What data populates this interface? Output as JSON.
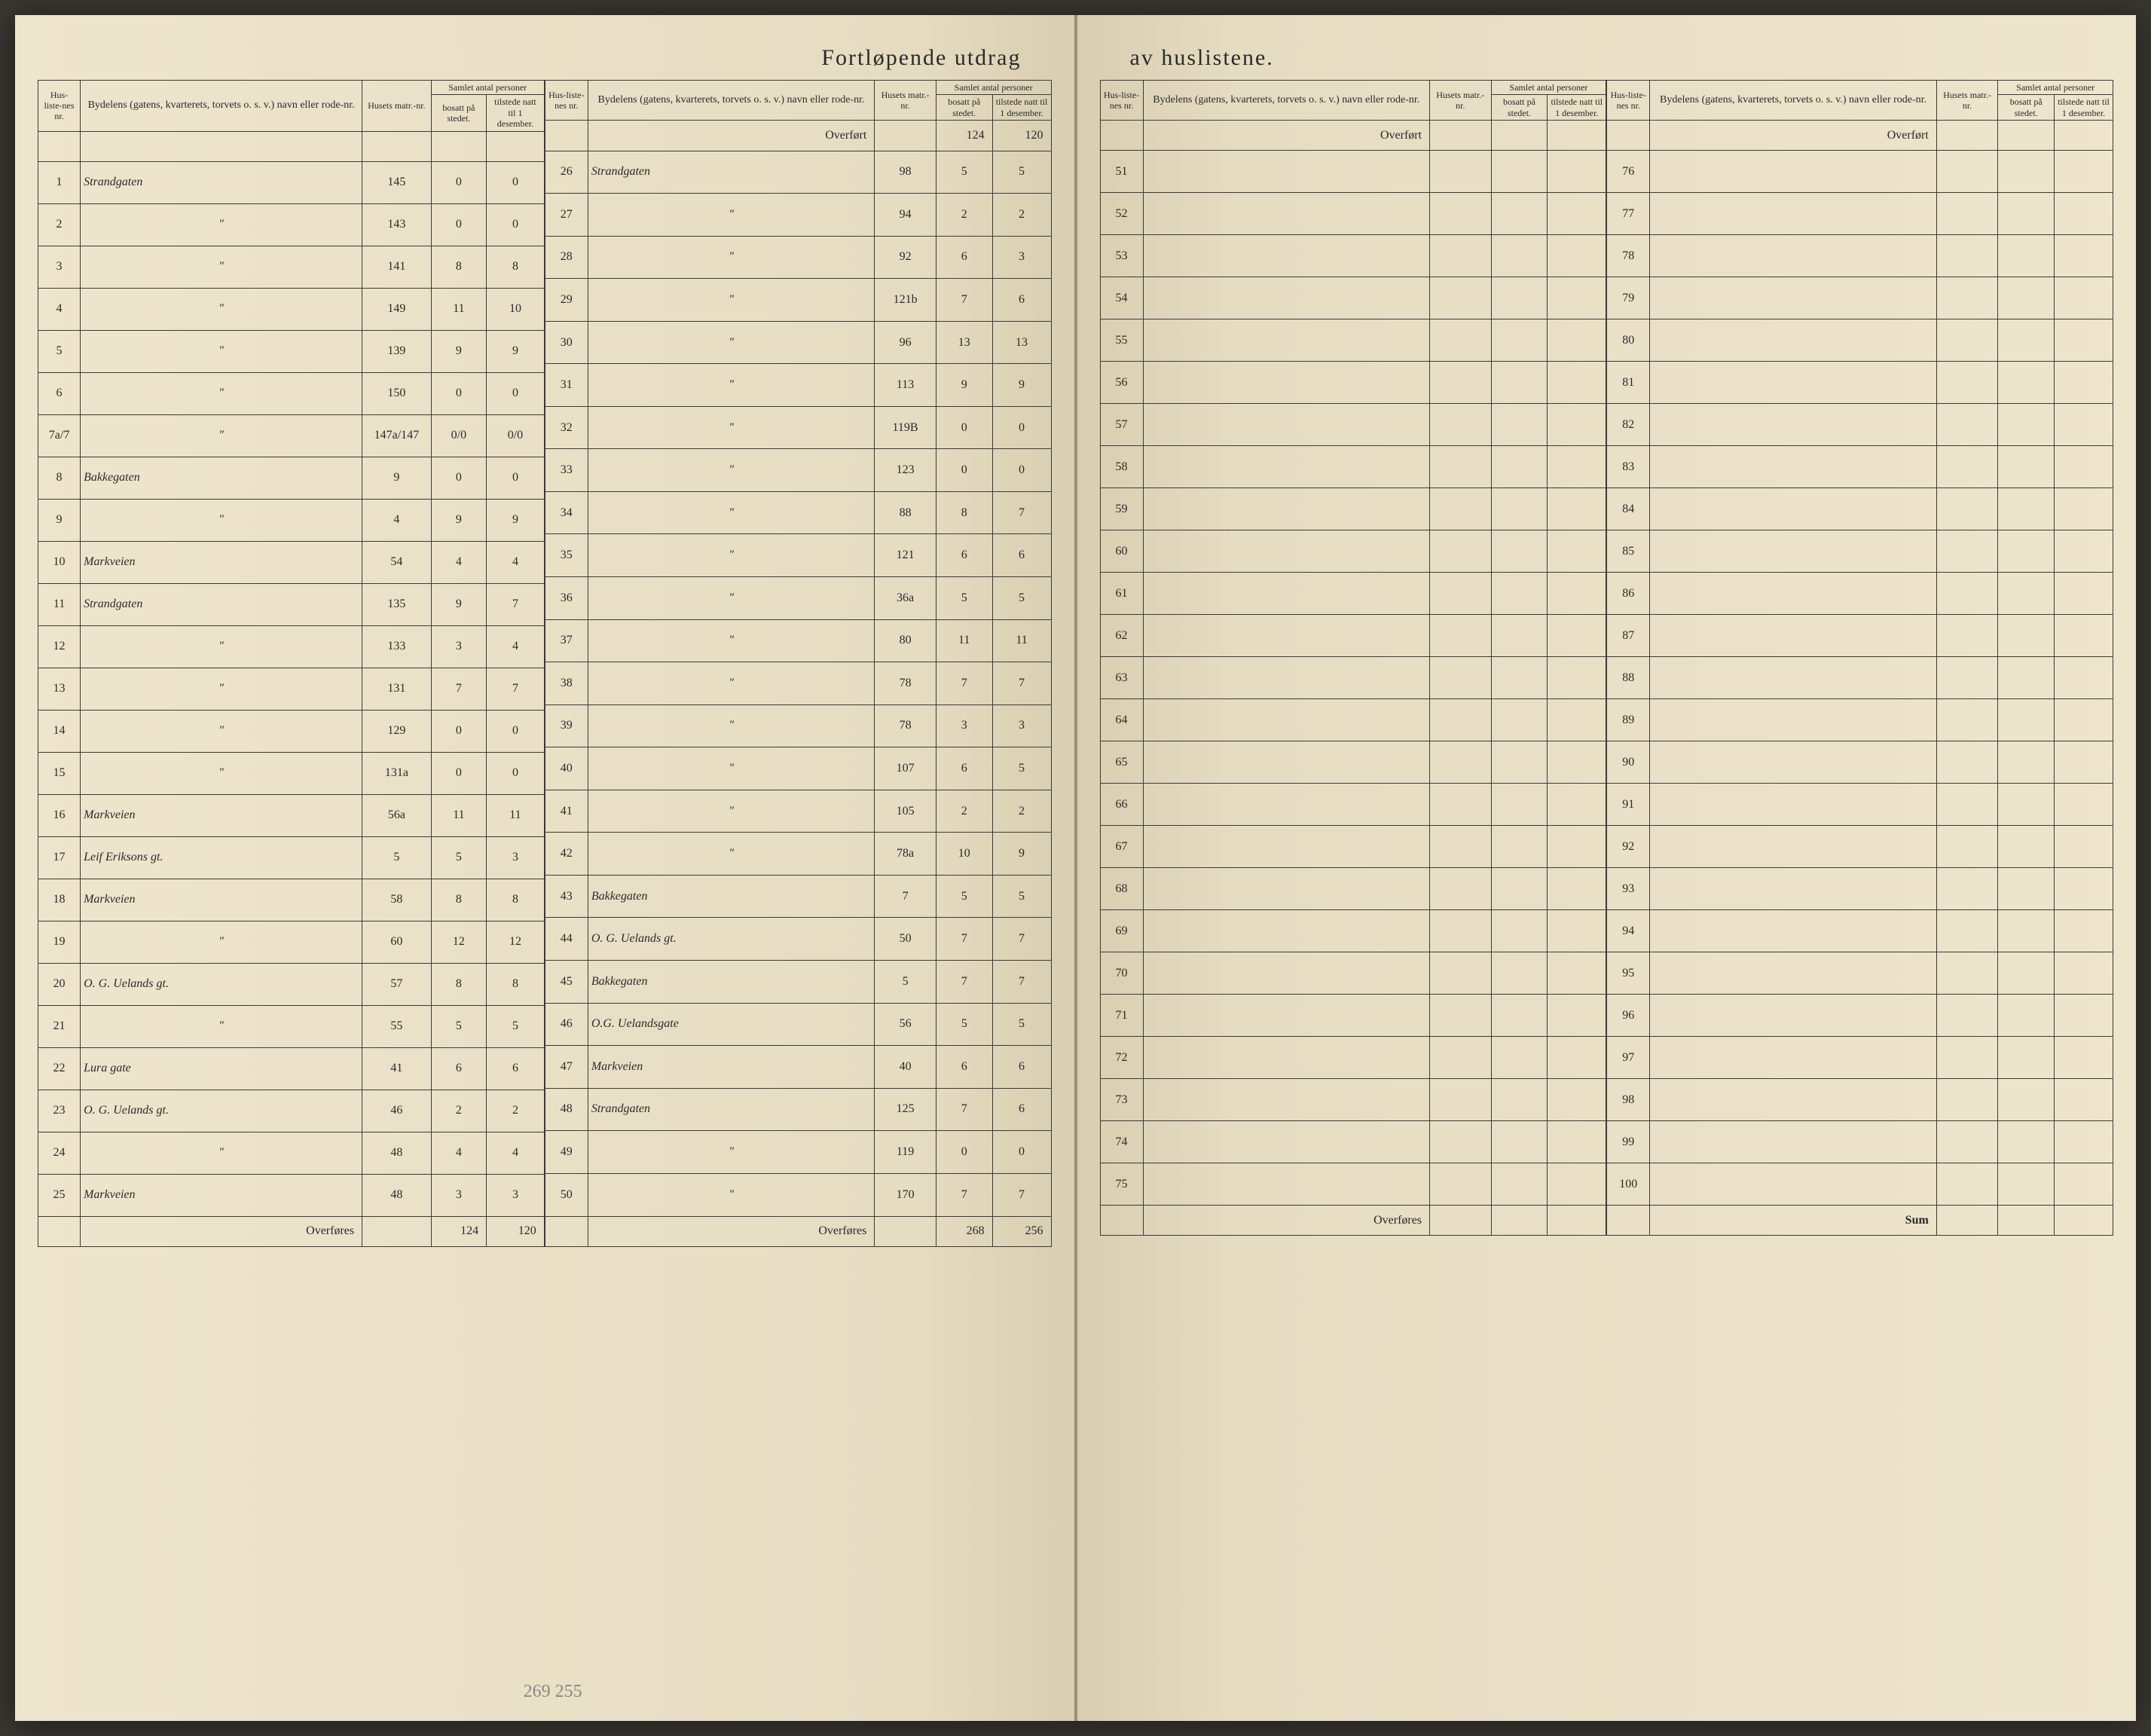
{
  "title_left": "Fortløpende utdrag",
  "title_right": "av huslistene.",
  "headers": {
    "nr": "Hus-liste-nes nr.",
    "name": "Bydelens (gatens, kvarterets, torvets o. s. v.) navn eller rode-nr.",
    "matr": "Husets matr.-nr.",
    "samlet": "Samlet antal personer",
    "bosatt": "bosatt på stedet.",
    "tilstede": "tilstede natt til 1 desember."
  },
  "labels": {
    "overfort": "Overført",
    "overfores": "Overføres",
    "sum": "Sum"
  },
  "col1": {
    "rows": [
      {
        "nr": "1",
        "name": "Strandgaten",
        "matr": "145",
        "bosatt": "0",
        "tilstede": "0"
      },
      {
        "nr": "2",
        "name": "\"",
        "matr": "143",
        "bosatt": "0",
        "tilstede": "0"
      },
      {
        "nr": "3",
        "name": "\"",
        "matr": "141",
        "bosatt": "8",
        "tilstede": "8"
      },
      {
        "nr": "4",
        "name": "\"",
        "matr": "149",
        "bosatt": "11",
        "tilstede": "10"
      },
      {
        "nr": "5",
        "name": "\"",
        "matr": "139",
        "bosatt": "9",
        "tilstede": "9"
      },
      {
        "nr": "6",
        "name": "\"",
        "matr": "150",
        "bosatt": "0",
        "tilstede": "0"
      },
      {
        "nr": "7a/7",
        "name": "\"",
        "matr": "147a/147",
        "bosatt": "0/0",
        "tilstede": "0/0"
      },
      {
        "nr": "8",
        "name": "Bakkegaten",
        "matr": "9",
        "bosatt": "0",
        "tilstede": "0"
      },
      {
        "nr": "9",
        "name": "\"",
        "matr": "4",
        "bosatt": "9",
        "tilstede": "9"
      },
      {
        "nr": "10",
        "name": "Markveien",
        "matr": "54",
        "bosatt": "4",
        "tilstede": "4"
      },
      {
        "nr": "11",
        "name": "Strandgaten",
        "matr": "135",
        "bosatt": "9",
        "tilstede": "7"
      },
      {
        "nr": "12",
        "name": "\"",
        "matr": "133",
        "bosatt": "3",
        "tilstede": "4"
      },
      {
        "nr": "13",
        "name": "\"",
        "matr": "131",
        "bosatt": "7",
        "tilstede": "7"
      },
      {
        "nr": "14",
        "name": "\"",
        "matr": "129",
        "bosatt": "0",
        "tilstede": "0"
      },
      {
        "nr": "15",
        "name": "\"",
        "matr": "131a",
        "bosatt": "0",
        "tilstede": "0"
      },
      {
        "nr": "16",
        "name": "Markveien",
        "matr": "56a",
        "bosatt": "11",
        "tilstede": "11"
      },
      {
        "nr": "17",
        "name": "Leif Eriksons gt.",
        "matr": "5",
        "bosatt": "5",
        "tilstede": "3"
      },
      {
        "nr": "18",
        "name": "Markveien",
        "matr": "58",
        "bosatt": "8",
        "tilstede": "8"
      },
      {
        "nr": "19",
        "name": "\"",
        "matr": "60",
        "bosatt": "12",
        "tilstede": "12"
      },
      {
        "nr": "20",
        "name": "O. G. Uelands gt.",
        "matr": "57",
        "bosatt": "8",
        "tilstede": "8"
      },
      {
        "nr": "21",
        "name": "\"",
        "matr": "55",
        "bosatt": "5",
        "tilstede": "5"
      },
      {
        "nr": "22",
        "name": "Lura gate",
        "matr": "41",
        "bosatt": "6",
        "tilstede": "6"
      },
      {
        "nr": "23",
        "name": "O. G. Uelands gt.",
        "matr": "46",
        "bosatt": "2",
        "tilstede": "2"
      },
      {
        "nr": "24",
        "name": "\"",
        "matr": "48",
        "bosatt": "4",
        "tilstede": "4"
      },
      {
        "nr": "25",
        "name": "Markveien",
        "matr": "48",
        "bosatt": "3",
        "tilstede": "3"
      }
    ],
    "overfores": {
      "bosatt": "124",
      "tilstede": "120"
    }
  },
  "col2": {
    "overfort": {
      "bosatt": "124",
      "tilstede": "120"
    },
    "rows": [
      {
        "nr": "26",
        "name": "Strandgaten",
        "matr": "98",
        "bosatt": "5",
        "tilstede": "5"
      },
      {
        "nr": "27",
        "name": "\"",
        "matr": "94",
        "bosatt": "2",
        "tilstede": "2"
      },
      {
        "nr": "28",
        "name": "\"",
        "matr": "92",
        "bosatt": "6",
        "tilstede": "3"
      },
      {
        "nr": "29",
        "name": "\"",
        "matr": "121b",
        "bosatt": "7",
        "tilstede": "6"
      },
      {
        "nr": "30",
        "name": "\"",
        "matr": "96",
        "bosatt": "13",
        "tilstede": "13"
      },
      {
        "nr": "31",
        "name": "\"",
        "matr": "113",
        "bosatt": "9",
        "tilstede": "9"
      },
      {
        "nr": "32",
        "name": "\"",
        "matr": "119B",
        "bosatt": "0",
        "tilstede": "0"
      },
      {
        "nr": "33",
        "name": "\"",
        "matr": "123",
        "bosatt": "0",
        "tilstede": "0"
      },
      {
        "nr": "34",
        "name": "\"",
        "matr": "88",
        "bosatt": "8",
        "tilstede": "7"
      },
      {
        "nr": "35",
        "name": "\"",
        "matr": "121",
        "bosatt": "6",
        "tilstede": "6"
      },
      {
        "nr": "36",
        "name": "\"",
        "matr": "36a",
        "bosatt": "5",
        "tilstede": "5"
      },
      {
        "nr": "37",
        "name": "\"",
        "matr": "80",
        "bosatt": "11",
        "tilstede": "11"
      },
      {
        "nr": "38",
        "name": "\"",
        "matr": "78",
        "bosatt": "7",
        "tilstede": "7"
      },
      {
        "nr": "39",
        "name": "\"",
        "matr": "78",
        "bosatt": "3",
        "tilstede": "3"
      },
      {
        "nr": "40",
        "name": "\"",
        "matr": "107",
        "bosatt": "6",
        "tilstede": "5"
      },
      {
        "nr": "41",
        "name": "\"",
        "matr": "105",
        "bosatt": "2",
        "tilstede": "2"
      },
      {
        "nr": "42",
        "name": "\"",
        "matr": "78a",
        "bosatt": "10",
        "tilstede": "9"
      },
      {
        "nr": "43",
        "name": "Bakkegaten",
        "matr": "7",
        "bosatt": "5",
        "tilstede": "5"
      },
      {
        "nr": "44",
        "name": "O. G. Uelands gt.",
        "matr": "50",
        "bosatt": "7",
        "tilstede": "7"
      },
      {
        "nr": "45",
        "name": "Bakkegaten",
        "matr": "5",
        "bosatt": "7",
        "tilstede": "7"
      },
      {
        "nr": "46",
        "name": "O.G. Uelandsgate",
        "matr": "56",
        "bosatt": "5",
        "tilstede": "5"
      },
      {
        "nr": "47",
        "name": "Markveien",
        "matr": "40",
        "bosatt": "6",
        "tilstede": "6"
      },
      {
        "nr": "48",
        "name": "Strandgaten",
        "matr": "125",
        "bosatt": "7",
        "tilstede": "6"
      },
      {
        "nr": "49",
        "name": "\"",
        "matr": "119",
        "bosatt": "0",
        "tilstede": "0"
      },
      {
        "nr": "50",
        "name": "\"",
        "matr": "170",
        "bosatt": "7",
        "tilstede": "7"
      }
    ],
    "overfores": {
      "bosatt": "268",
      "tilstede": "256"
    },
    "annotation": "269 255"
  },
  "col3": {
    "rows": [
      {
        "nr": "51"
      },
      {
        "nr": "52"
      },
      {
        "nr": "53"
      },
      {
        "nr": "54"
      },
      {
        "nr": "55"
      },
      {
        "nr": "56"
      },
      {
        "nr": "57"
      },
      {
        "nr": "58"
      },
      {
        "nr": "59"
      },
      {
        "nr": "60"
      },
      {
        "nr": "61"
      },
      {
        "nr": "62"
      },
      {
        "nr": "63"
      },
      {
        "nr": "64"
      },
      {
        "nr": "65"
      },
      {
        "nr": "66"
      },
      {
        "nr": "67"
      },
      {
        "nr": "68"
      },
      {
        "nr": "69"
      },
      {
        "nr": "70"
      },
      {
        "nr": "71"
      },
      {
        "nr": "72"
      },
      {
        "nr": "73"
      },
      {
        "nr": "74"
      },
      {
        "nr": "75"
      }
    ]
  },
  "col4": {
    "rows": [
      {
        "nr": "76"
      },
      {
        "nr": "77"
      },
      {
        "nr": "78"
      },
      {
        "nr": "79"
      },
      {
        "nr": "80"
      },
      {
        "nr": "81"
      },
      {
        "nr": "82"
      },
      {
        "nr": "83"
      },
      {
        "nr": "84"
      },
      {
        "nr": "85"
      },
      {
        "nr": "86"
      },
      {
        "nr": "87"
      },
      {
        "nr": "88"
      },
      {
        "nr": "89"
      },
      {
        "nr": "90"
      },
      {
        "nr": "91"
      },
      {
        "nr": "92"
      },
      {
        "nr": "93"
      },
      {
        "nr": "94"
      },
      {
        "nr": "95"
      },
      {
        "nr": "96"
      },
      {
        "nr": "97"
      },
      {
        "nr": "98"
      },
      {
        "nr": "99"
      },
      {
        "nr": "100"
      }
    ]
  },
  "colors": {
    "paper": "#ede4cc",
    "ink": "#2a2a2a",
    "handwriting": "#1a1a1a",
    "border": "#3a3a3a",
    "background": "#3a3632"
  }
}
